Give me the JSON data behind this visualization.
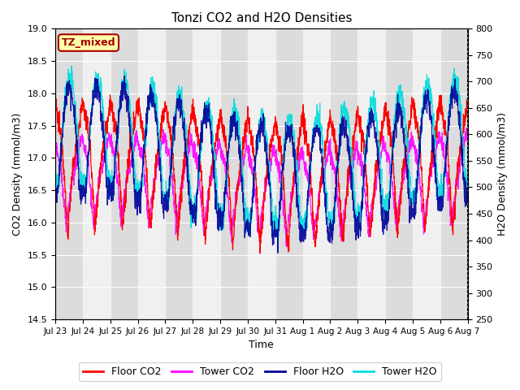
{
  "title": "Tonzi CO2 and H2O Densities",
  "xlabel": "Time",
  "ylabel_left": "CO2 Density (mmol/m3)",
  "ylabel_right": "H2O Density (mmol/m3)",
  "ylim_left": [
    14.5,
    19.0
  ],
  "ylim_right": [
    250,
    800
  ],
  "annotation_text": "TZ_mixed",
  "annotation_bg": "#FFFFAA",
  "annotation_edge": "#AA0000",
  "floor_co2_color": "#FF0000",
  "tower_co2_color": "#FF00FF",
  "floor_h2o_color": "#000099",
  "tower_h2o_color": "#00DDDD",
  "legend_labels": [
    "Floor CO2",
    "Tower CO2",
    "Floor H2O",
    "Tower H2O"
  ],
  "n_days": 15,
  "n_points": 2160,
  "background_color": "#DCDCDC",
  "band_color": "#F0F0F0",
  "yticks_left": [
    14.5,
    15.0,
    15.5,
    16.0,
    16.5,
    17.0,
    17.5,
    18.0,
    18.5,
    19.0
  ],
  "yticks_right": [
    250,
    300,
    350,
    400,
    450,
    500,
    550,
    600,
    650,
    700,
    750,
    800
  ]
}
